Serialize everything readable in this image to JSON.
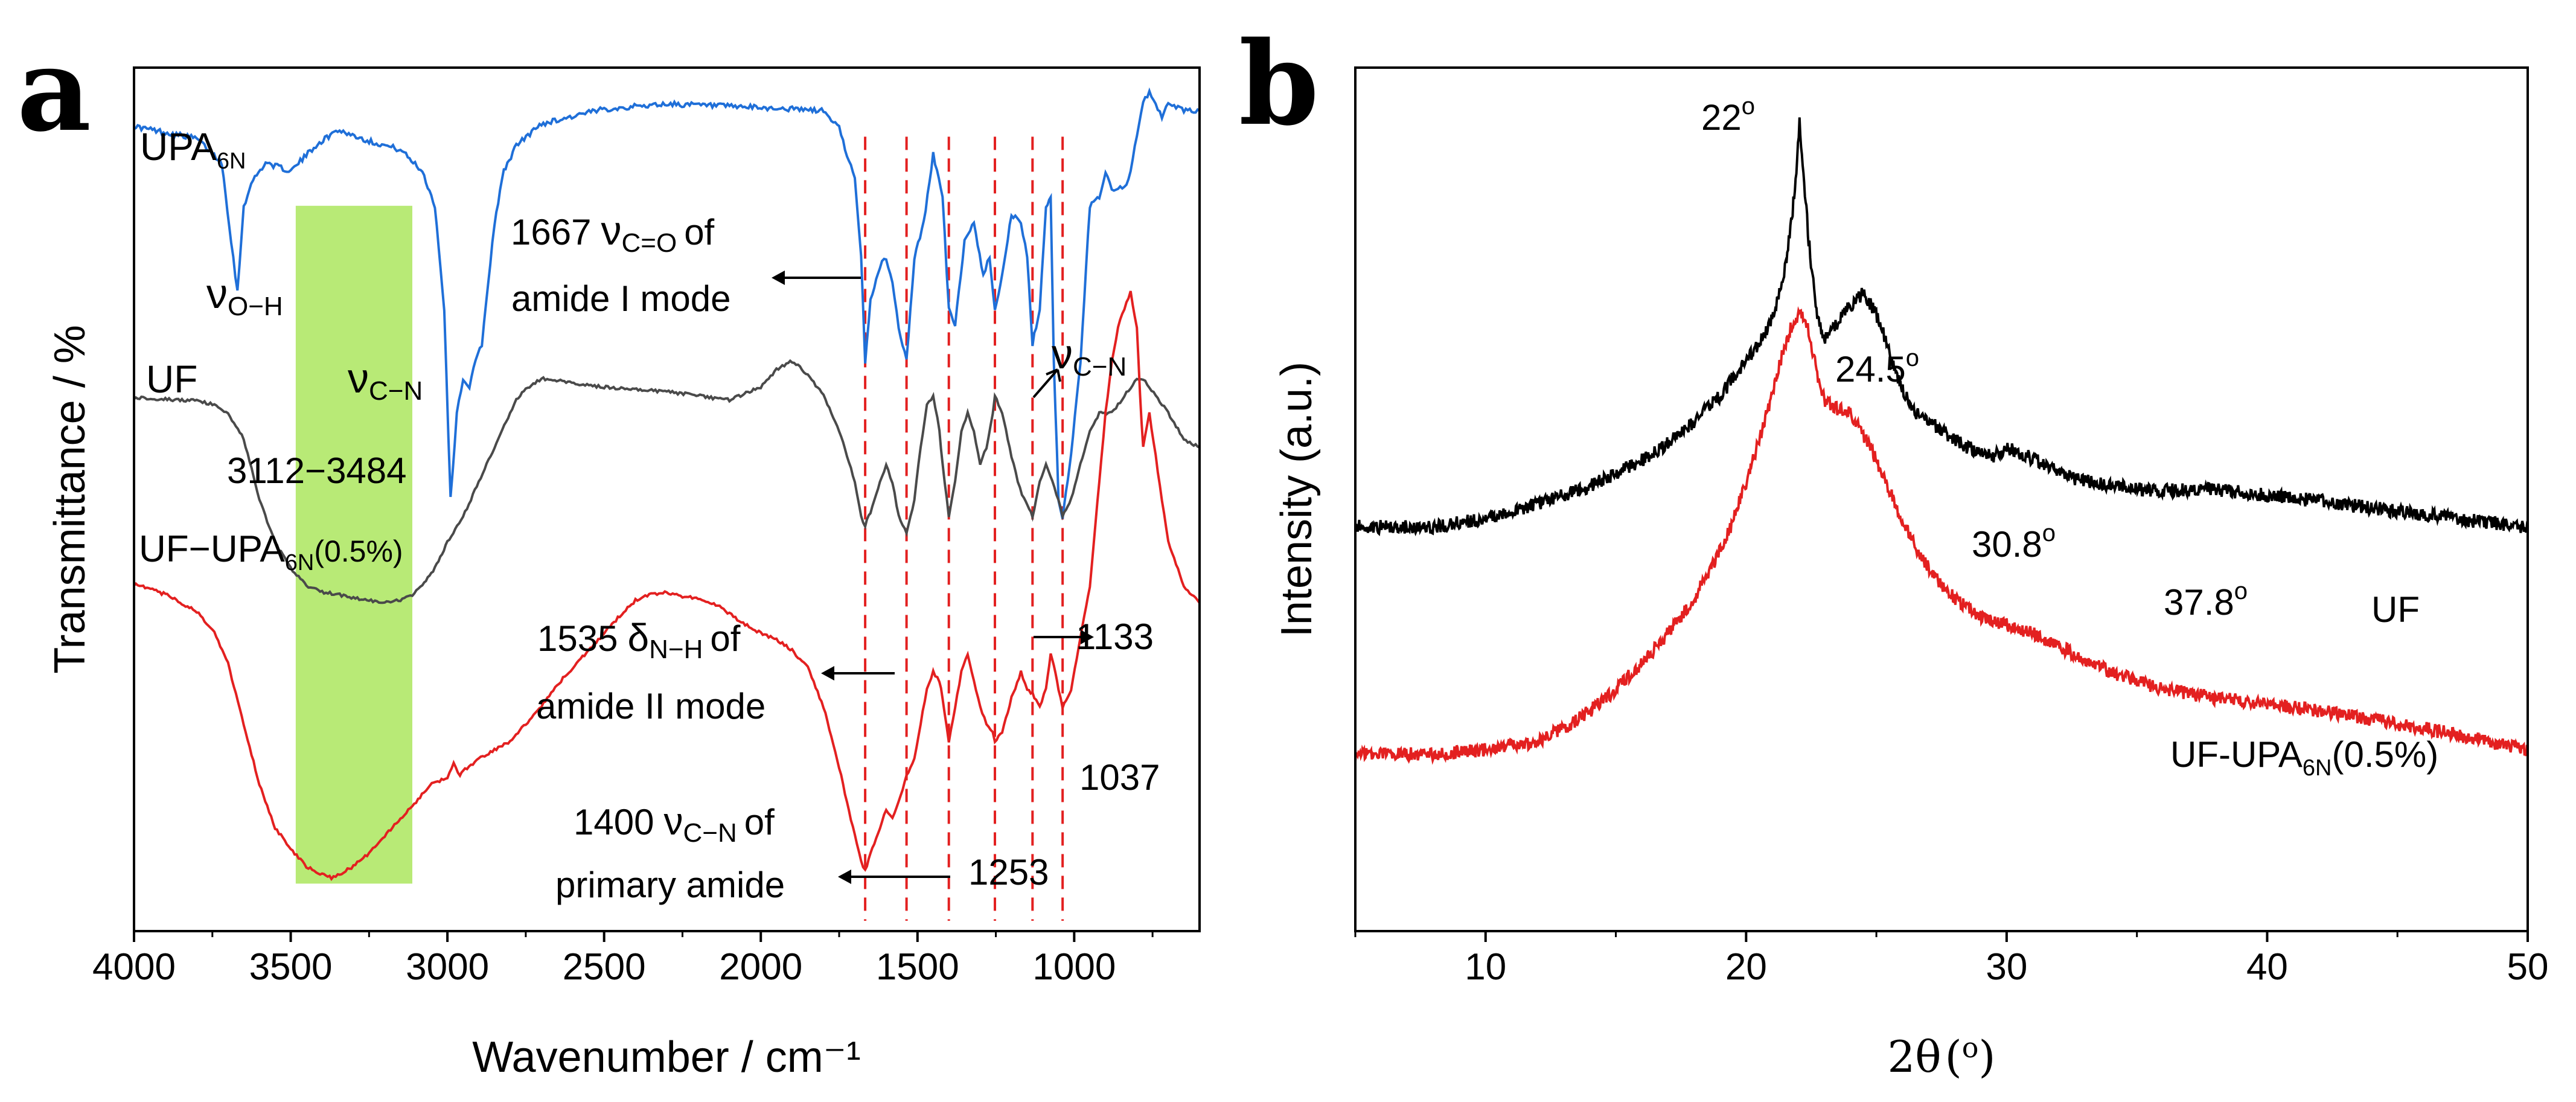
{
  "chart_data": [
    {
      "panel": "a",
      "type": "line",
      "title": "",
      "xlabel": "Wavenumber / cm⁻¹",
      "ylabel": "Transmittance / %",
      "xlim": [
        4000,
        600
      ],
      "ylim": [
        0,
        100
      ],
      "x_axis_reversed": true,
      "xticks": [
        "4000",
        "3500",
        "3000",
        "2500",
        "2000",
        "1500",
        "1000"
      ],
      "grid": false,
      "series": [
        {
          "name": "UPA6N",
          "label_main": "UPA",
          "label_sub": "6N",
          "color": "#1f6fd8",
          "x": [
            4000,
            3900,
            3800,
            3720,
            3690,
            3670,
            3650,
            3620,
            3580,
            3500,
            3420,
            3350,
            3250,
            3150,
            3080,
            3040,
            3010,
            2990,
            2970,
            2950,
            2930,
            2910,
            2890,
            2870,
            2850,
            2820,
            2780,
            2700,
            2500,
            2300,
            2100,
            1900,
            1800,
            1750,
            1700,
            1680,
            1667,
            1650,
            1620,
            1600,
            1580,
            1560,
            1535,
            1510,
            1480,
            1450,
            1420,
            1400,
            1380,
            1350,
            1320,
            1290,
            1270,
            1253,
            1230,
            1200,
            1170,
            1150,
            1133,
            1110,
            1090,
            1075,
            1065,
            1050,
            1037,
            1010,
            980,
            950,
            920,
            900,
            880,
            860,
            840,
            820,
            800,
            780,
            760,
            740,
            720,
            700,
            650,
            600
          ],
          "y": [
            93.2,
            92.5,
            91.8,
            89,
            80,
            74,
            84,
            87,
            89,
            88,
            91,
            92.8,
            91.5,
            90.5,
            88,
            84,
            72,
            50,
            60,
            64,
            63,
            66,
            68,
            75,
            82,
            88,
            91,
            93.5,
            95.2,
            95.8,
            95.5,
            95.2,
            95,
            93,
            87,
            78,
            66,
            73,
            77,
            78,
            75,
            70,
            66,
            78,
            82,
            90,
            85,
            72,
            70,
            80,
            82,
            76,
            78,
            72,
            76,
            83,
            82,
            78,
            68,
            72,
            84,
            85,
            66,
            50,
            48,
            55,
            66,
            84,
            85,
            88,
            86,
            86,
            86,
            88,
            92,
            96,
            97,
            96,
            94,
            96,
            95,
            95
          ]
        },
        {
          "name": "UF",
          "label_main": "UF",
          "color": "#4a4a4a",
          "x": [
            4000,
            3900,
            3800,
            3750,
            3700,
            3650,
            3600,
            3550,
            3500,
            3450,
            3400,
            3350,
            3300,
            3250,
            3200,
            3150,
            3112,
            3080,
            3040,
            3000,
            2950,
            2900,
            2850,
            2800,
            2780,
            2750,
            2720,
            2700,
            2500,
            2300,
            2200,
            2100,
            2000,
            1950,
            1900,
            1850,
            1800,
            1750,
            1700,
            1680,
            1667,
            1650,
            1620,
            1600,
            1580,
            1560,
            1535,
            1510,
            1490,
            1470,
            1450,
            1430,
            1420,
            1400,
            1380,
            1360,
            1340,
            1320,
            1300,
            1280,
            1260,
            1253,
            1230,
            1200,
            1180,
            1160,
            1133,
            1110,
            1090,
            1070,
            1050,
            1037,
            1010,
            980,
            950,
            920,
            880,
            860,
            840,
            820,
            800,
            780,
            760,
            740,
            720,
            700,
            650,
            600
          ],
          "y": [
            61.8,
            61.6,
            61.4,
            61,
            60,
            57,
            50,
            45,
            42,
            40,
            39.3,
            39,
            38.6,
            38.3,
            38,
            38.3,
            39,
            40,
            42,
            45,
            48,
            52,
            56,
            60,
            61.5,
            62.8,
            63.5,
            64,
            63,
            62.5,
            62,
            61.5,
            63,
            65,
            66,
            64.5,
            62,
            58,
            52,
            48,
            47,
            48.5,
            52,
            54,
            52,
            48,
            46,
            50,
            56,
            61,
            62,
            58,
            54,
            48,
            52,
            58,
            60,
            58,
            54,
            56,
            60,
            62,
            60,
            55,
            52,
            50,
            48,
            52,
            54,
            52,
            50,
            48,
            50,
            54,
            58,
            60,
            60,
            61,
            62,
            63,
            64,
            64,
            63,
            62,
            61,
            60,
            57,
            56
          ]
        },
        {
          "name": "UF-UPA6N(0.5%)",
          "label_main": "UF−UPA",
          "label_sub": "6N",
          "label_suffix": "(0.5%)",
          "color": "#e32020",
          "x": [
            4000,
            3900,
            3800,
            3750,
            3700,
            3650,
            3600,
            3550,
            3500,
            3450,
            3400,
            3370,
            3350,
            3300,
            3250,
            3200,
            3150,
            3100,
            3050,
            3000,
            2980,
            2960,
            2950,
            2900,
            2850,
            2800,
            2750,
            2700,
            2650,
            2600,
            2550,
            2500,
            2450,
            2400,
            2350,
            2300,
            2250,
            2200,
            2150,
            2100,
            2050,
            2000,
            1950,
            1900,
            1850,
            1800,
            1750,
            1700,
            1680,
            1667,
            1650,
            1620,
            1600,
            1580,
            1560,
            1535,
            1510,
            1490,
            1470,
            1450,
            1430,
            1420,
            1400,
            1380,
            1360,
            1340,
            1320,
            1300,
            1280,
            1260,
            1253,
            1230,
            1200,
            1170,
            1150,
            1133,
            1110,
            1090,
            1075,
            1060,
            1050,
            1037,
            1010,
            980,
            950,
            920,
            900,
            880,
            860,
            840,
            820,
            800,
            790,
            780,
            760,
            740,
            720,
            700,
            650,
            600
          ],
          "y": [
            40.2,
            39,
            37,
            35,
            31,
            24,
            17,
            12,
            9.5,
            7.5,
            6.5,
            6.2,
            6.5,
            7.5,
            9,
            11,
            13,
            15,
            17,
            17.8,
            19.5,
            18,
            18.5,
            20,
            21,
            22,
            24,
            26,
            28.5,
            30.5,
            32.5,
            34.5,
            36.5,
            38.3,
            39,
            39.2,
            38.8,
            38.5,
            38,
            36.8,
            35.5,
            34.5,
            33.8,
            32.5,
            30.5,
            26,
            19,
            11,
            8,
            7,
            9,
            12,
            14,
            13,
            15,
            18,
            20,
            24,
            28,
            30,
            29,
            27,
            22,
            26,
            30,
            32,
            29,
            26,
            24,
            23,
            22,
            23,
            27,
            30,
            28,
            27.5,
            26,
            28,
            32,
            30,
            28,
            26,
            28,
            34,
            40,
            52,
            60,
            66,
            70,
            72,
            74,
            70,
            62,
            56,
            60,
            55,
            50,
            45,
            40,
            38
          ]
        }
      ],
      "highlight_band": {
        "x_range": [
          3484,
          3112
        ],
        "color": "#b8ea76"
      },
      "reference_lines": [
        1667,
        1535,
        1400,
        1253,
        1133,
        1037
      ],
      "annotations": {
        "nu": "ν",
        "delta": "δ",
        "sub_oh": "O−H",
        "sub_cn": "C−N",
        "sub_co": "C=O",
        "sub_nh": "N−H",
        "a1667_value": "1667",
        "a1667_tail": "of",
        "a1667_line2": "amide I mode",
        "range_label": "3112−3484",
        "a1535_value": "1535",
        "a1535_tail": "of",
        "a1535_line2": "amide II mode",
        "a1400_value": "1400",
        "a1400_tail": "of",
        "a1400_line2": "primary amide",
        "a1253": "1253",
        "a1133": "1133",
        "a1037": "1037"
      }
    },
    {
      "panel": "b",
      "type": "line",
      "title": "",
      "xlabel": "2θ (o)",
      "xlabel_main": "2θ",
      "xlabel_unit": "o",
      "ylabel": "Intensity (a.u.)",
      "xlim": [
        5,
        50
      ],
      "ylim": [
        0,
        100
      ],
      "xticks": [
        "10",
        "20",
        "30",
        "40",
        "50"
      ],
      "grid": false,
      "series": [
        {
          "name": "UF",
          "label_main": "UF",
          "color": "#000000",
          "x": [
            5,
            6,
            8,
            10,
            12,
            14,
            15,
            16,
            17,
            18,
            19,
            19.5,
            20,
            20.5,
            21,
            21.4,
            21.7,
            21.9,
            22.05,
            22.2,
            22.4,
            22.7,
            23,
            23.4,
            23.8,
            24.2,
            24.5,
            24.9,
            25.3,
            25.8,
            26.5,
            27.5,
            28.5,
            29.5,
            30,
            30.8,
            31.5,
            32.5,
            34,
            36,
            37.8,
            40,
            42,
            44,
            46,
            48,
            50
          ],
          "y": [
            47,
            46.8,
            46.8,
            47.8,
            49.5,
            51.5,
            53,
            54.5,
            56.5,
            59,
            62,
            64,
            66,
            68,
            71,
            75,
            81,
            87,
            93.5,
            88,
            80,
            72,
            68.5,
            70,
            72,
            73,
            74,
            72,
            69,
            64,
            60,
            58,
            56,
            55,
            56,
            55,
            54,
            52.5,
            51.5,
            51,
            51.2,
            50.5,
            49.8,
            49,
            48.2,
            47.5,
            46.8
          ]
        },
        {
          "name": "UF-UPA6N(0.5%)",
          "label_main": "UF-UPA",
          "label_sub": "6N",
          "label_suffix": "(0.5%)",
          "color": "#e32020",
          "x": [
            5,
            6,
            8,
            10,
            12,
            13,
            14,
            15,
            16,
            17,
            18,
            19,
            19.5,
            20,
            20.5,
            21,
            21.4,
            21.8,
            22.1,
            22.4,
            22.7,
            23,
            23.5,
            24,
            24.5,
            25,
            25.5,
            26,
            26.5,
            27,
            28,
            29,
            30,
            31,
            32,
            33,
            34,
            35,
            36,
            37,
            38,
            40,
            42,
            44,
            46,
            48,
            50
          ],
          "y": [
            20.5,
            20.5,
            20.5,
            21,
            22,
            23.5,
            25.5,
            28,
            31,
            34.5,
            38.5,
            44,
            47.5,
            52,
            57,
            62,
            67,
            70.5,
            71.5,
            69.5,
            65,
            61.5,
            60.5,
            60,
            57.5,
            54.5,
            51,
            47.5,
            44.5,
            42,
            38.5,
            36.5,
            35.5,
            34.5,
            33,
            31.5,
            30,
            29,
            28,
            27.5,
            27,
            26.3,
            25.5,
            24.5,
            23.5,
            22.3,
            21
          ]
        }
      ],
      "peak_labels": [
        {
          "text": "22°",
          "value": "22",
          "deg": "o",
          "x": 22.0,
          "y": 93.5
        },
        {
          "text": "24.5°",
          "value": "24.5",
          "deg": "o",
          "x": 24.5,
          "y": 74
        },
        {
          "text": "30.8°",
          "value": "30.8",
          "deg": "o",
          "x": 30.8,
          "y": 56
        },
        {
          "text": "37.8°",
          "value": "37.8",
          "deg": "o",
          "x": 37.8,
          "y": 51.2
        }
      ]
    }
  ]
}
